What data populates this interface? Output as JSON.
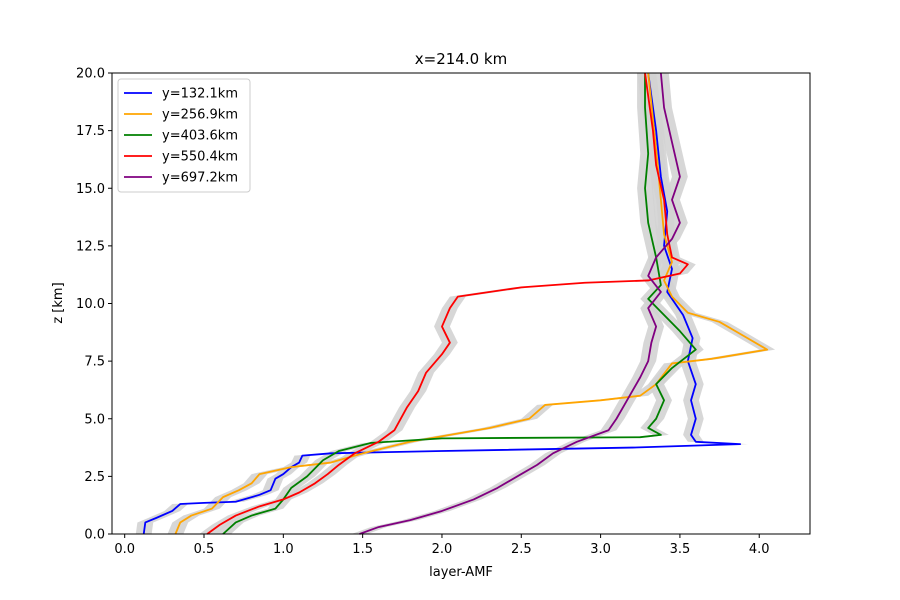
{
  "chart_data": {
    "type": "line",
    "title": "x=214.0 km",
    "xlabel": "layer-AMF",
    "ylabel": "z [km]",
    "xlim": [
      -0.08,
      4.32
    ],
    "ylim": [
      0,
      20
    ],
    "xticks": [
      "0.0",
      "0.5",
      "1.0",
      "1.5",
      "2.0",
      "2.5",
      "3.0",
      "3.5",
      "4.0"
    ],
    "yticks": [
      "0.0",
      "2.5",
      "5.0",
      "7.5",
      "10.0",
      "12.5",
      "15.0",
      "17.5",
      "20.0"
    ],
    "grid": false,
    "legend_position": "top-left",
    "uncertainty_band_color": "#d3d3d3",
    "series": [
      {
        "name": "y=132.1km",
        "color": "#0000ff",
        "points": [
          [
            0.12,
            0
          ],
          [
            0.13,
            0.5
          ],
          [
            0.2,
            0.7
          ],
          [
            0.3,
            1.0
          ],
          [
            0.35,
            1.3
          ],
          [
            0.5,
            1.35
          ],
          [
            0.7,
            1.4
          ],
          [
            0.85,
            1.7
          ],
          [
            0.92,
            1.9
          ],
          [
            0.95,
            2.4
          ],
          [
            1.0,
            2.6
          ],
          [
            1.05,
            2.9
          ],
          [
            1.1,
            3.1
          ],
          [
            1.12,
            3.4
          ],
          [
            1.3,
            3.5
          ],
          [
            2.0,
            3.6
          ],
          [
            3.2,
            3.75
          ],
          [
            3.88,
            3.9
          ],
          [
            3.6,
            4.0
          ],
          [
            3.57,
            4.3
          ],
          [
            3.6,
            5.0
          ],
          [
            3.57,
            5.8
          ],
          [
            3.6,
            6.5
          ],
          [
            3.55,
            7.5
          ],
          [
            3.58,
            8.5
          ],
          [
            3.52,
            9.5
          ],
          [
            3.42,
            10.5
          ],
          [
            3.45,
            11.5
          ],
          [
            3.4,
            12.5
          ],
          [
            3.42,
            14.0
          ],
          [
            3.38,
            15.5
          ],
          [
            3.35,
            17.5
          ],
          [
            3.3,
            20.0
          ]
        ]
      },
      {
        "name": "y=256.9km",
        "color": "#ffa500",
        "points": [
          [
            0.32,
            0
          ],
          [
            0.35,
            0.5
          ],
          [
            0.42,
            0.8
          ],
          [
            0.55,
            1.1
          ],
          [
            0.62,
            1.6
          ],
          [
            0.72,
            1.9
          ],
          [
            0.8,
            2.2
          ],
          [
            0.85,
            2.6
          ],
          [
            1.05,
            2.9
          ],
          [
            1.3,
            3.1
          ],
          [
            1.5,
            3.5
          ],
          [
            1.8,
            4.0
          ],
          [
            2.05,
            4.3
          ],
          [
            2.3,
            4.6
          ],
          [
            2.55,
            5.0
          ],
          [
            2.65,
            5.6
          ],
          [
            3.0,
            5.8
          ],
          [
            3.25,
            6.0
          ],
          [
            3.35,
            6.5
          ],
          [
            3.45,
            7.4
          ],
          [
            3.7,
            7.6
          ],
          [
            4.05,
            8.0
          ],
          [
            3.9,
            8.6
          ],
          [
            3.75,
            9.2
          ],
          [
            3.55,
            9.6
          ],
          [
            3.45,
            10.3
          ],
          [
            3.4,
            11.0
          ],
          [
            3.45,
            11.8
          ],
          [
            3.4,
            13.0
          ],
          [
            3.38,
            14.5
          ],
          [
            3.36,
            16.0
          ],
          [
            3.33,
            18.0
          ],
          [
            3.3,
            20.0
          ]
        ]
      },
      {
        "name": "y=403.6km",
        "color": "#008000",
        "points": [
          [
            0.62,
            0
          ],
          [
            0.7,
            0.5
          ],
          [
            0.8,
            0.8
          ],
          [
            0.95,
            1.1
          ],
          [
            1.0,
            1.5
          ],
          [
            1.05,
            2.0
          ],
          [
            1.15,
            2.5
          ],
          [
            1.25,
            3.2
          ],
          [
            1.35,
            3.6
          ],
          [
            1.55,
            3.95
          ],
          [
            2.0,
            4.15
          ],
          [
            3.25,
            4.2
          ],
          [
            3.38,
            4.3
          ],
          [
            3.3,
            4.6
          ],
          [
            3.35,
            5.0
          ],
          [
            3.4,
            5.8
          ],
          [
            3.35,
            6.5
          ],
          [
            3.45,
            7.2
          ],
          [
            3.6,
            8.0
          ],
          [
            3.5,
            8.8
          ],
          [
            3.4,
            9.5
          ],
          [
            3.3,
            10.2
          ],
          [
            3.38,
            10.8
          ],
          [
            3.35,
            12.0
          ],
          [
            3.3,
            13.5
          ],
          [
            3.28,
            15.0
          ],
          [
            3.3,
            16.5
          ],
          [
            3.28,
            18.5
          ],
          [
            3.28,
            20.0
          ]
        ]
      },
      {
        "name": "y=550.4km",
        "color": "#ff0000",
        "points": [
          [
            0.52,
            0
          ],
          [
            0.6,
            0.4
          ],
          [
            0.7,
            0.8
          ],
          [
            0.85,
            1.2
          ],
          [
            1.0,
            1.5
          ],
          [
            1.1,
            1.8
          ],
          [
            1.2,
            2.2
          ],
          [
            1.28,
            2.6
          ],
          [
            1.35,
            3.0
          ],
          [
            1.45,
            3.5
          ],
          [
            1.6,
            4.0
          ],
          [
            1.7,
            4.5
          ],
          [
            1.78,
            5.5
          ],
          [
            1.85,
            6.2
          ],
          [
            1.9,
            7.0
          ],
          [
            2.0,
            7.8
          ],
          [
            2.05,
            8.3
          ],
          [
            2.0,
            9.0
          ],
          [
            2.05,
            9.8
          ],
          [
            2.1,
            10.3
          ],
          [
            2.5,
            10.7
          ],
          [
            2.9,
            10.9
          ],
          [
            3.3,
            11.0
          ],
          [
            3.5,
            11.3
          ],
          [
            3.55,
            11.7
          ],
          [
            3.45,
            12.0
          ],
          [
            3.42,
            13.0
          ],
          [
            3.4,
            14.5
          ],
          [
            3.35,
            16.0
          ],
          [
            3.33,
            17.5
          ],
          [
            3.3,
            19.0
          ],
          [
            3.28,
            20.0
          ]
        ]
      },
      {
        "name": "y=697.2km",
        "color": "#800080",
        "points": [
          [
            1.48,
            0
          ],
          [
            1.6,
            0.3
          ],
          [
            1.8,
            0.6
          ],
          [
            2.0,
            1.0
          ],
          [
            2.2,
            1.5
          ],
          [
            2.35,
            2.0
          ],
          [
            2.5,
            2.6
          ],
          [
            2.6,
            3.0
          ],
          [
            2.7,
            3.5
          ],
          [
            2.85,
            4.0
          ],
          [
            3.05,
            4.5
          ],
          [
            3.1,
            5.0
          ],
          [
            3.15,
            5.6
          ],
          [
            3.2,
            6.2
          ],
          [
            3.25,
            6.8
          ],
          [
            3.3,
            7.5
          ],
          [
            3.32,
            8.3
          ],
          [
            3.35,
            9.0
          ],
          [
            3.3,
            9.8
          ],
          [
            3.38,
            10.5
          ],
          [
            3.3,
            11.2
          ],
          [
            3.35,
            12.0
          ],
          [
            3.45,
            12.8
          ],
          [
            3.5,
            13.5
          ],
          [
            3.45,
            14.5
          ],
          [
            3.5,
            15.5
          ],
          [
            3.45,
            17.0
          ],
          [
            3.4,
            18.5
          ],
          [
            3.38,
            20.0
          ]
        ]
      }
    ]
  }
}
